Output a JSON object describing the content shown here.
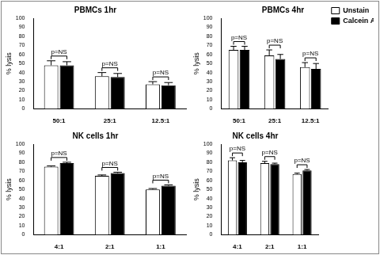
{
  "chart_data": [
    {
      "type": "bar",
      "title": "PBMCs 1hr",
      "y_label": "% lysis",
      "categories": [
        "50:1",
        "25:1",
        "12.5:1"
      ],
      "series": [
        {
          "name": "Unstain",
          "color": "#ffffff",
          "values": [
            48,
            36,
            27
          ],
          "errors": [
            5,
            4,
            3
          ]
        },
        {
          "name": "Calcein AM",
          "color": "#000000",
          "values": [
            48,
            35,
            26
          ],
          "errors": [
            4,
            4,
            3
          ]
        }
      ],
      "annotations": [
        "p=NS",
        "p=NS",
        "p=NS"
      ],
      "ylim": [
        0,
        100
      ],
      "yticks": [
        0,
        10,
        20,
        30,
        40,
        50,
        60,
        70,
        80,
        90,
        100
      ],
      "grid": false
    },
    {
      "type": "bar",
      "title": "PBMCs 4hr",
      "y_label": "% lysis",
      "categories": [
        "50:1",
        "25:1",
        "12.5:1"
      ],
      "series": [
        {
          "name": "Unstain",
          "color": "#ffffff",
          "values": [
            65,
            59,
            46
          ],
          "errors": [
            4,
            6,
            5
          ]
        },
        {
          "name": "Calcein AM",
          "color": "#000000",
          "values": [
            65,
            55,
            44
          ],
          "errors": [
            4,
            5,
            6
          ]
        }
      ],
      "annotations": [
        "p=NS",
        "p=NS",
        "p=NS"
      ],
      "ylim": [
        0,
        100
      ],
      "yticks": [
        0,
        10,
        20,
        30,
        40,
        50,
        60,
        70,
        80,
        90,
        100
      ],
      "grid": false,
      "legend": "right"
    },
    {
      "type": "bar",
      "title": "NK cells 1hr",
      "y_label": "% lysis",
      "categories": [
        "4:1",
        "2:1",
        "1:1"
      ],
      "series": [
        {
          "name": "Unstain",
          "color": "#ffffff",
          "values": [
            75,
            65,
            50
          ],
          "errors": [
            1,
            1,
            1
          ]
        },
        {
          "name": "Calcein AM",
          "color": "#000000",
          "values": [
            79,
            68,
            54
          ],
          "errors": [
            1,
            1,
            1
          ]
        }
      ],
      "annotations": [
        "p=NS",
        "p=NS",
        "p=NS"
      ],
      "ylim": [
        0,
        100
      ],
      "yticks": [
        0,
        10,
        20,
        30,
        40,
        50,
        60,
        70,
        80,
        90,
        100
      ],
      "grid": false
    },
    {
      "type": "bar",
      "title": "NK cells 4hr",
      "y_label": "% lysis",
      "categories": [
        "4:1",
        "2:1",
        "1:1"
      ],
      "series": [
        {
          "name": "Unstain",
          "color": "#ffffff",
          "values": [
            82,
            79,
            67
          ],
          "errors": [
            3,
            2,
            1
          ]
        },
        {
          "name": "Calcein AM",
          "color": "#000000",
          "values": [
            80,
            78,
            71
          ],
          "errors": [
            2,
            1,
            1
          ]
        }
      ],
      "annotations": [
        "p=NS",
        "p=NS",
        "p=NS"
      ],
      "ylim": [
        0,
        100
      ],
      "yticks": [
        0,
        10,
        20,
        30,
        40,
        50,
        60,
        70,
        80,
        90,
        100
      ],
      "grid": false
    }
  ]
}
